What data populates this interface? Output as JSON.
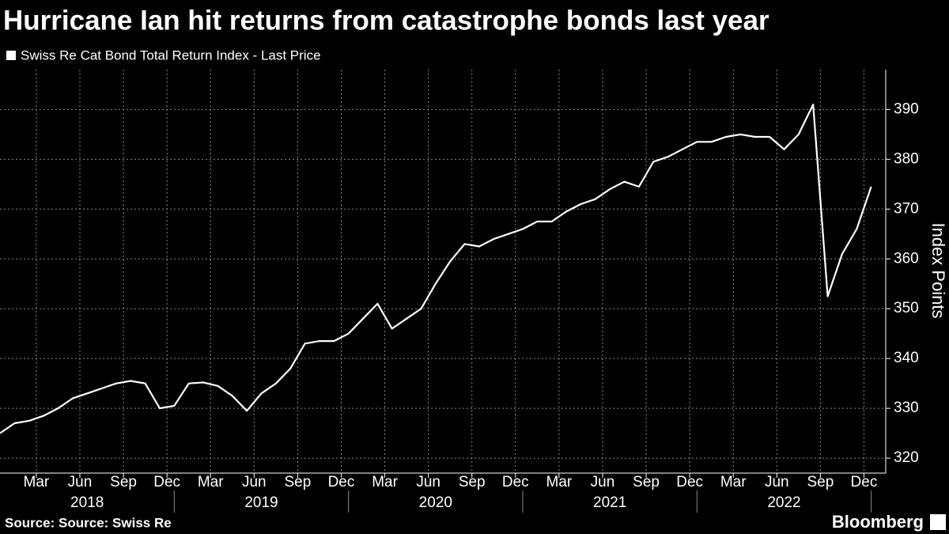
{
  "chart_data": {
    "type": "line",
    "title": "Hurricane Ian hit returns from catastrophe bonds last year",
    "y_label": "Index Points",
    "source": "Source: Source: Swiss Re",
    "brand": "Bloomberg",
    "x": [
      "2018-01",
      "2018-02",
      "2018-03",
      "2018-04",
      "2018-05",
      "2018-06",
      "2018-07",
      "2018-08",
      "2018-09",
      "2018-10",
      "2018-11",
      "2018-12",
      "2019-01",
      "2019-02",
      "2019-03",
      "2019-04",
      "2019-05",
      "2019-06",
      "2019-07",
      "2019-08",
      "2019-09",
      "2019-10",
      "2019-11",
      "2019-12",
      "2020-01",
      "2020-02",
      "2020-03",
      "2020-04",
      "2020-05",
      "2020-06",
      "2020-07",
      "2020-08",
      "2020-09",
      "2020-10",
      "2020-11",
      "2020-12",
      "2021-01",
      "2021-02",
      "2021-03",
      "2021-04",
      "2021-05",
      "2021-06",
      "2021-07",
      "2021-08",
      "2021-09",
      "2021-10",
      "2021-11",
      "2021-12",
      "2022-01",
      "2022-02",
      "2022-03",
      "2022-04",
      "2022-05",
      "2022-06",
      "2022-07",
      "2022-08",
      "2022-09",
      "2022-10",
      "2022-11",
      "2022-12",
      "2023-01"
    ],
    "series": [
      {
        "name": "Swiss Re Cat Bond Total Return Index - Last Price",
        "color": "#ffffff",
        "values": [
          325,
          327,
          327.5,
          328.5,
          330,
          332,
          333,
          334,
          335,
          335.5,
          335,
          330,
          330.5,
          335,
          335.2,
          334.5,
          332.5,
          329.5,
          333,
          335,
          338,
          343,
          343.5,
          343.5,
          345,
          348,
          351,
          346,
          348,
          350,
          355,
          359.5,
          363,
          362.5,
          364,
          365,
          366,
          367.5,
          367.5,
          369.5,
          371,
          372,
          374,
          375.5,
          374.5,
          379.5,
          380.5,
          382,
          383.5,
          383.5,
          384.5,
          385,
          384.5,
          384.5,
          382,
          385,
          391,
          352.5,
          361,
          366,
          374.5
        ]
      }
    ],
    "xlim": [
      "2018-01",
      "2023-02"
    ],
    "xticks": [
      {
        "value": "2018-03",
        "label": "Mar"
      },
      {
        "value": "2018-06",
        "label": "Jun"
      },
      {
        "value": "2018-09",
        "label": "Sep"
      },
      {
        "value": "2018-12",
        "label": "Dec"
      },
      {
        "value": "2019-03",
        "label": "Mar"
      },
      {
        "value": "2019-06",
        "label": "Jun"
      },
      {
        "value": "2019-09",
        "label": "Sep"
      },
      {
        "value": "2019-12",
        "label": "Dec"
      },
      {
        "value": "2020-03",
        "label": "Mar"
      },
      {
        "value": "2020-06",
        "label": "Jun"
      },
      {
        "value": "2020-09",
        "label": "Sep"
      },
      {
        "value": "2020-12",
        "label": "Dec"
      },
      {
        "value": "2021-03",
        "label": "Mar"
      },
      {
        "value": "2021-06",
        "label": "Jun"
      },
      {
        "value": "2021-09",
        "label": "Sep"
      },
      {
        "value": "2021-12",
        "label": "Dec"
      },
      {
        "value": "2022-03",
        "label": "Mar"
      },
      {
        "value": "2022-06",
        "label": "Jun"
      },
      {
        "value": "2022-09",
        "label": "Sep"
      },
      {
        "value": "2022-12",
        "label": "Dec"
      }
    ],
    "year_ticks": [
      {
        "value": "2018-01",
        "label": "2018"
      },
      {
        "value": "2019-01",
        "label": "2019"
      },
      {
        "value": "2020-01",
        "label": "2020"
      },
      {
        "value": "2021-01",
        "label": "2021"
      },
      {
        "value": "2022-01",
        "label": "2022"
      }
    ],
    "ylim": [
      317,
      398
    ],
    "yticks": [
      320,
      330,
      340,
      350,
      360,
      370,
      380,
      390
    ],
    "grid": true,
    "background": "#000000"
  }
}
